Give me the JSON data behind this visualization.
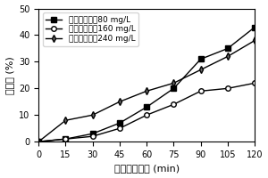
{
  "x": [
    0,
    15,
    30,
    45,
    60,
    75,
    90,
    105,
    120
  ],
  "series": [
    {
      "label": "初始镉浓度为80 mg/L",
      "y": [
        0,
        1,
        3,
        7,
        13,
        20,
        31,
        35,
        43
      ],
      "marker": "s",
      "markerfacecolor": "#000000",
      "markeredgecolor": "#000000"
    },
    {
      "label": "初始镉浓度为160 mg/L",
      "y": [
        0,
        1,
        2,
        5,
        10,
        14,
        19,
        20,
        22
      ],
      "marker": "o",
      "markerfacecolor": "#ffffff",
      "markeredgecolor": "#000000"
    },
    {
      "label": "初始镉浓度为240 mg/L",
      "y": [
        0,
        8,
        10,
        15,
        19,
        22,
        27,
        32,
        38
      ],
      "marker": "d",
      "markerfacecolor": "#666666",
      "markeredgecolor": "#000000"
    }
  ],
  "xlabel": "紫外光解时间 (min)",
  "ylabel": "分解率 (%)",
  "xlim": [
    0,
    120
  ],
  "ylim": [
    0,
    50
  ],
  "xticks": [
    0,
    15,
    30,
    45,
    60,
    75,
    90,
    105,
    120
  ],
  "yticks": [
    0,
    10,
    20,
    30,
    40,
    50
  ],
  "legend_loc": "upper left",
  "fontsize_label": 8,
  "fontsize_tick": 7,
  "fontsize_legend": 6.5,
  "markersize": 4,
  "linewidth": 1.0
}
